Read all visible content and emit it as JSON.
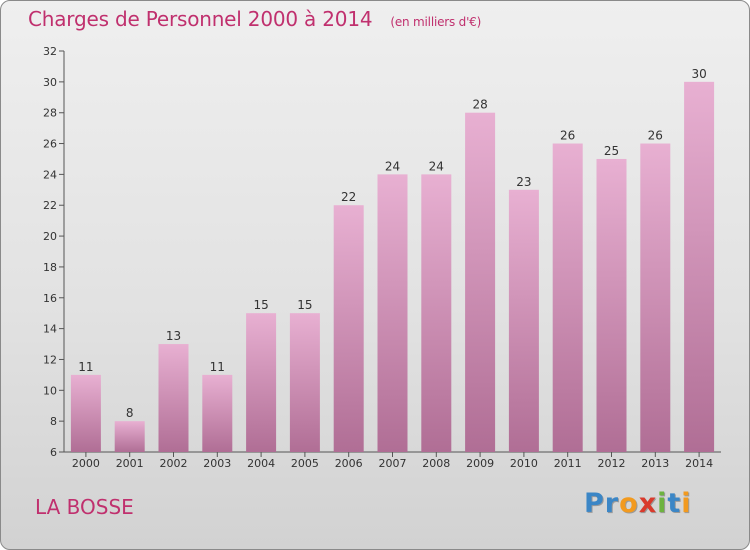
{
  "header": {
    "title": "Charges de Personnel 2000 à 2014",
    "unit": "(en milliers d'€)"
  },
  "footer": {
    "place": "LA BOSSE",
    "brand": "Proxiti",
    "brand_letters": [
      "P",
      "r",
      "o",
      "x",
      "i",
      "t",
      "i"
    ],
    "brand_colors": [
      "#3b86c6",
      "#3b86c6",
      "#f29a1f",
      "#d93a2c",
      "#6db33f",
      "#3b86c6",
      "#f29a1f"
    ]
  },
  "colors": {
    "bar_top": "#e8b0d2",
    "bar_bottom": "#b06e95",
    "text_accent": "#c0306e"
  },
  "chart_data": {
    "type": "bar",
    "title": "Charges de Personnel 2000 à 2014",
    "subtitle": "(en milliers d'€)",
    "categories": [
      "2000",
      "2001",
      "2002",
      "2003",
      "2004",
      "2005",
      "2006",
      "2007",
      "2008",
      "2009",
      "2010",
      "2011",
      "2012",
      "2013",
      "2014"
    ],
    "values": [
      11,
      8,
      13,
      11,
      15,
      15,
      22,
      24,
      24,
      28,
      23,
      26,
      25,
      26,
      30
    ],
    "ylim": [
      6,
      32
    ],
    "yticks": [
      6,
      8,
      10,
      12,
      14,
      16,
      18,
      20,
      22,
      24,
      26,
      28,
      30,
      32
    ],
    "grid": false,
    "data_labels": true
  }
}
